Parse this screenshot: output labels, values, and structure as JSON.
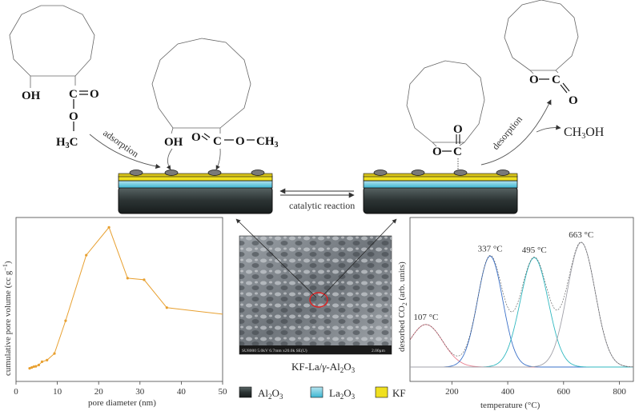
{
  "reaction": {
    "reactant": {
      "oh": "OH",
      "c": "C",
      "o_double": "O",
      "o_single": "O",
      "methyl": "H3C"
    },
    "adsorbed": {
      "oh": "OH",
      "c": "C",
      "o_double": "O",
      "o_ester": "O",
      "methyl": "CH3"
    },
    "intermediate": {
      "o_ring": "O",
      "c": "C",
      "o_double": "O"
    },
    "product": {
      "o_ring": "O",
      "c": "C",
      "o_double": "O"
    },
    "byproduct": "CH3OH",
    "adsorption_label": "adsorption",
    "desorption_label": "desorption",
    "catalytic_label": "catalytic reaction"
  },
  "sem": {
    "caption": "KF-La/γ-Al2O3",
    "info_text": "SU8000 5.0kV 6.7mm x20.0k SE(U)",
    "scale_text": "2.00μm"
  },
  "legend": [
    {
      "label": "Al2O3",
      "color": "#2e3a3a"
    },
    {
      "label": "La2O3",
      "color": "#4cc3dc"
    },
    {
      "label": "KF",
      "color": "#f0e020"
    }
  ],
  "chart_data": [
    {
      "type": "line",
      "xlabel": "pore diameter (nm)",
      "ylabel": "cumulative pore volume (cc g-1)",
      "xlim": [
        0,
        50
      ],
      "xticks": [
        0,
        10,
        20,
        30,
        40,
        50
      ],
      "color": "#e8a030",
      "x": [
        3.3,
        3.8,
        4.3,
        4.8,
        5.5,
        6.3,
        7.5,
        9.3,
        12,
        17,
        22.5,
        27,
        31,
        36.5,
        50
      ],
      "y": [
        0.08,
        0.085,
        0.09,
        0.092,
        0.1,
        0.12,
        0.13,
        0.17,
        0.37,
        0.77,
        0.94,
        0.63,
        0.62,
        0.45,
        0.41
      ],
      "y_unit": "normalized (no y ticks shown)"
    },
    {
      "type": "line",
      "xlabel": "temperature (°C)",
      "ylabel": "desorbed CO2 (arb. units)",
      "xlim": [
        50,
        850
      ],
      "xticks": [
        200,
        400,
        600,
        800
      ],
      "peaks": [
        {
          "label": "107 °C",
          "center": 107,
          "height": 0.28,
          "width": 60,
          "color": "#e88090"
        },
        {
          "label": "337 °C",
          "center": 337,
          "height": 0.73,
          "width": 45,
          "color": "#3a70c8"
        },
        {
          "label": "495 °C",
          "center": 495,
          "height": 0.72,
          "width": 50,
          "color": "#30b8c0"
        },
        {
          "label": "663 °C",
          "center": 663,
          "height": 0.82,
          "width": 50,
          "color": "#a0a0a8"
        }
      ],
      "envelope_color": "#555555",
      "y_unit": "normalized (no y ticks shown)"
    }
  ]
}
